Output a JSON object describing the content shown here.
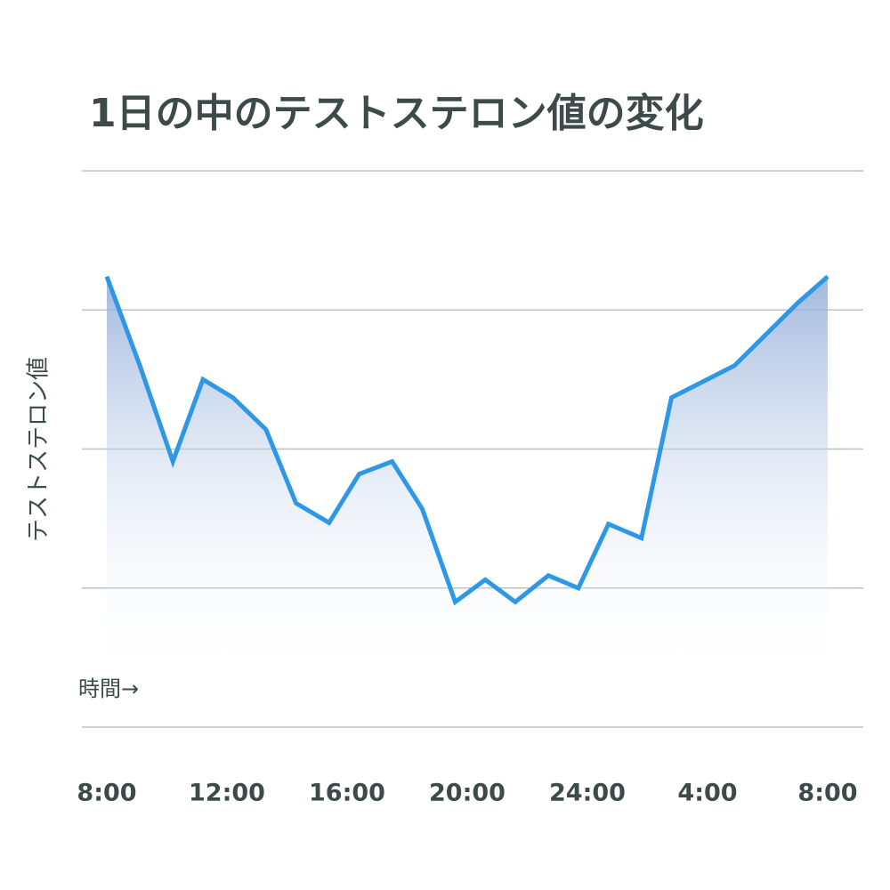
{
  "chart_data": {
    "type": "area",
    "title": "1日の中のテストステロン値の変化",
    "y_label": "テストステロン値",
    "x_annotation": "時間→",
    "x": [
      0,
      1.1,
      2.2,
      3.2,
      4.2,
      5.3,
      6.3,
      7.4,
      8.4,
      9.5,
      10.5,
      11.6,
      12.6,
      13.6,
      14.7,
      15.7,
      16.7,
      17.8,
      18.8,
      20.9,
      23.0,
      24
    ],
    "values": [
      3.24,
      2.6,
      1.91,
      2.5,
      2.37,
      2.14,
      1.61,
      1.47,
      1.82,
      1.91,
      1.57,
      0.9,
      1.06,
      0.9,
      1.09,
      1.0,
      1.46,
      1.36,
      2.37,
      2.6,
      3.05,
      3.24
    ],
    "color": "#2e98e6",
    "xlim": [
      0,
      24
    ],
    "xticks": [
      {
        "value": 0,
        "label": "8:00"
      },
      {
        "value": 4,
        "label": "12:00"
      },
      {
        "value": 8,
        "label": "16:00"
      },
      {
        "value": 12,
        "label": "20:00"
      },
      {
        "value": 16,
        "label": "24:00"
      },
      {
        "value": 20,
        "label": "4:00"
      },
      {
        "value": 24,
        "label": "8:00"
      }
    ],
    "ylim": [
      0,
      4
    ],
    "yticks": [
      0,
      1,
      2,
      3,
      4
    ],
    "grid": true
  }
}
